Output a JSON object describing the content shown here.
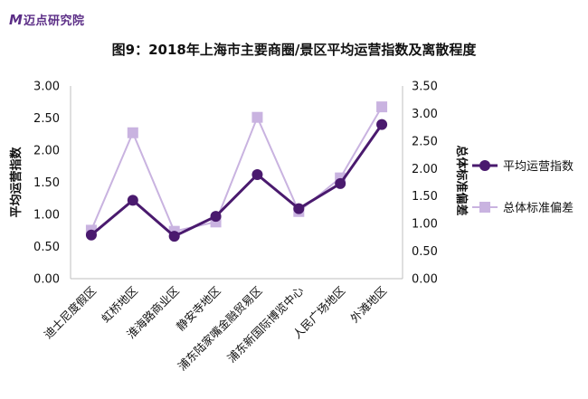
{
  "logo": {
    "mark": "M",
    "text": "迈点研究院"
  },
  "chart_data": {
    "type": "line",
    "title": "图9：2018年上海市主要商圈/景区平均运营指数及离散程度",
    "categories": [
      "迪士尼度假区",
      "虹桥地区",
      "淮海路商业区",
      "静安寺地区",
      "浦东陆家嘴金融贸易区",
      "浦东新国际博览中心",
      "人民广场地区",
      "外滩地区"
    ],
    "series": [
      {
        "name": "平均运营指数",
        "axis": "left",
        "color": "#4a1a6e",
        "marker": "circle",
        "values": [
          0.68,
          1.22,
          0.66,
          0.97,
          1.62,
          1.09,
          1.48,
          2.4
        ]
      },
      {
        "name": "总体标准偏差",
        "axis": "right",
        "color": "#c9b3e0",
        "marker": "square",
        "values": [
          0.88,
          2.65,
          0.86,
          1.03,
          2.93,
          1.22,
          1.83,
          3.12
        ]
      }
    ],
    "ylabel": "平均运营指数",
    "y2label": "总体标准偏差",
    "ylim": [
      0,
      3
    ],
    "y2lim": [
      0,
      3.5
    ],
    "yticks": [
      "0.00",
      "0.50",
      "1.00",
      "1.50",
      "2.00",
      "2.50",
      "3.00"
    ],
    "y2ticks": [
      "0.00",
      "0.50",
      "1.00",
      "1.50",
      "2.00",
      "2.50",
      "3.00",
      "3.50"
    ],
    "grid": false,
    "legend": "right"
  }
}
